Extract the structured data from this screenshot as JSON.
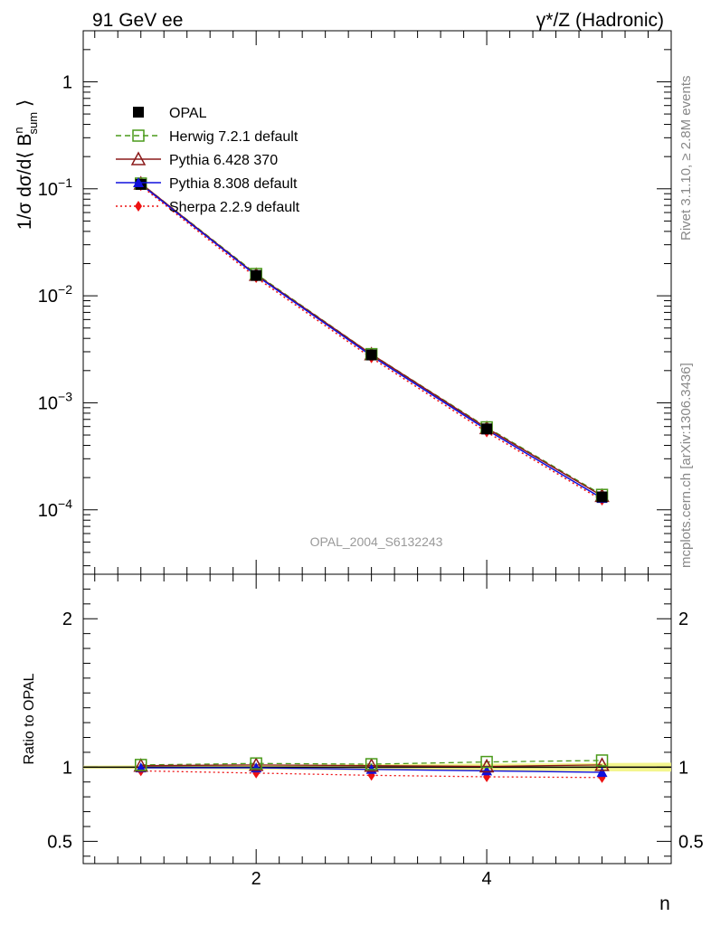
{
  "header": {
    "left_label": "91 GeV ee",
    "right_label": "γ*/Z (Hadronic)"
  },
  "side_labels": {
    "rivet": "Rivet 3.1.10, ≥ 2.8M events",
    "mcplots": "mcplots.cern.ch [arXiv:1306.3436]"
  },
  "analysis_label": "OPAL_2004_S6132243",
  "chart_data": [
    {
      "type": "line",
      "panel": "main",
      "ylabel": "1/σ dσ/d⟨ B^n_sum ⟩",
      "yscale": "log",
      "ylim": [
        2.5e-05,
        3
      ],
      "xlim": [
        0.5,
        5.6
      ],
      "ytick_labels": [
        "1",
        "10^-1",
        "10^-2",
        "10^-3",
        "10^-4"
      ],
      "x": [
        1,
        2,
        3,
        4,
        5
      ],
      "series": [
        {
          "name": "OPAL",
          "values": [
            0.11,
            0.0155,
            0.0028,
            0.00057,
            0.000132
          ],
          "color": "#000000",
          "marker": "square-filled",
          "line": "none"
        },
        {
          "name": "Herwig 7.2.1 default",
          "values": [
            0.112,
            0.016,
            0.00285,
            0.00059,
            0.000138
          ],
          "color": "#4a9a1a",
          "marker": "square-open",
          "line": "dashed"
        },
        {
          "name": "Pythia 6.428 370",
          "values": [
            0.112,
            0.0157,
            0.00284,
            0.00058,
            0.000135
          ],
          "color": "#8b1a1a",
          "marker": "triangle-open",
          "line": "solid"
        },
        {
          "name": "Pythia 8.308 default",
          "values": [
            0.11,
            0.0155,
            0.00275,
            0.00056,
            0.000128
          ],
          "color": "#1010dd",
          "marker": "triangle-filled",
          "line": "solid"
        },
        {
          "name": "Sherpa 2.2.9 default",
          "values": [
            0.107,
            0.0148,
            0.00263,
            0.000533,
            0.000123
          ],
          "color": "#ee1111",
          "marker": "diamond-filled",
          "line": "dotted"
        }
      ],
      "legend": "top-left"
    },
    {
      "type": "line",
      "panel": "ratio",
      "ylabel": "Ratio to OPAL",
      "xlabel": "n",
      "ylim": [
        0.35,
        2.3
      ],
      "xlim": [
        0.5,
        5.6
      ],
      "ytick_labels": [
        "0.5",
        "1",
        "2"
      ],
      "xtick_labels": [
        "2",
        "4"
      ],
      "x": [
        1,
        2,
        3,
        4,
        5
      ],
      "series": [
        {
          "name": "Herwig 7.2.1 default",
          "values": [
            1.015,
            1.025,
            1.02,
            1.035,
            1.045
          ],
          "color": "#4a9a1a",
          "marker": "square-open",
          "line": "dashed"
        },
        {
          "name": "Pythia 6.428 370",
          "values": [
            1.01,
            1.015,
            1.01,
            1.005,
            1.015
          ],
          "color": "#8b1a1a",
          "marker": "triangle-open",
          "line": "solid"
        },
        {
          "name": "Pythia 8.308 default",
          "values": [
            0.995,
            0.995,
            0.985,
            0.975,
            0.965
          ],
          "color": "#1010dd",
          "marker": "triangle-filled",
          "line": "solid"
        },
        {
          "name": "Sherpa 2.2.9 default",
          "values": [
            0.975,
            0.96,
            0.945,
            0.935,
            0.93
          ],
          "color": "#ee1111",
          "marker": "diamond-filled",
          "line": "dotted"
        }
      ],
      "band": {
        "x": [
          0.5,
          5.6
        ],
        "lower": [
          0.99,
          0.97
        ],
        "upper": [
          1.01,
          1.03
        ],
        "color": "#f2f57a"
      }
    }
  ]
}
